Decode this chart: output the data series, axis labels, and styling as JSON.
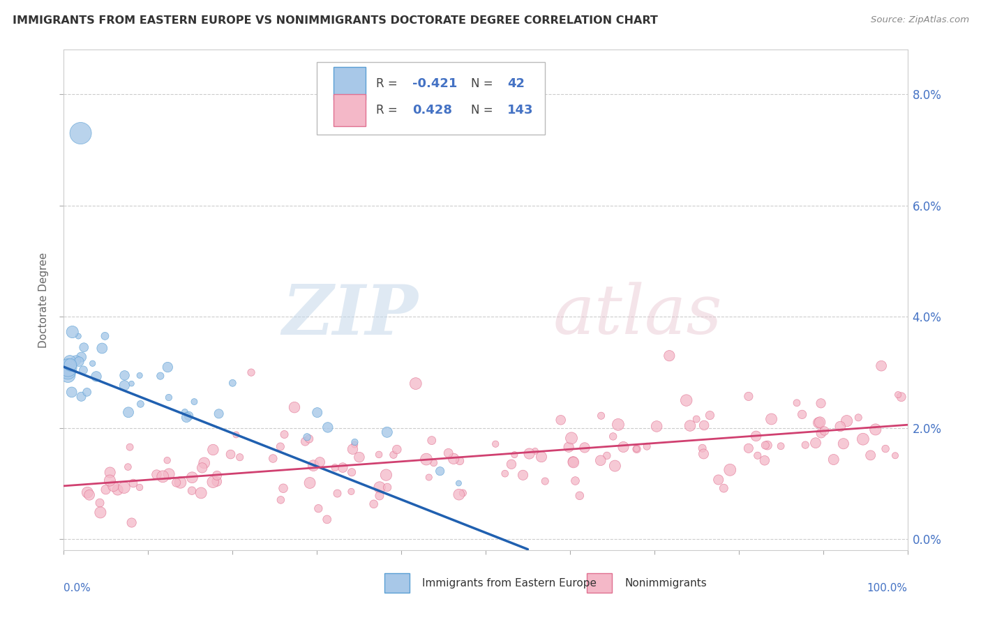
{
  "title": "IMMIGRANTS FROM EASTERN EUROPE VS NONIMMIGRANTS DOCTORATE DEGREE CORRELATION CHART",
  "source": "Source: ZipAtlas.com",
  "ylabel": "Doctorate Degree",
  "blue_R": -0.421,
  "blue_N": 42,
  "pink_R": 0.428,
  "pink_N": 143,
  "blue_scatter_color": "#a8c8e8",
  "blue_edge_color": "#5a9fd4",
  "pink_scatter_color": "#f4b8c8",
  "pink_edge_color": "#e07090",
  "blue_line_color": "#2060b0",
  "pink_line_color": "#d04070",
  "background_color": "#ffffff",
  "grid_color": "#cccccc",
  "watermark_zip": "ZIP",
  "watermark_atlas": "atlas",
  "tick_color": "#4472c4",
  "title_color": "#333333",
  "ylabel_color": "#666666",
  "xlim": [
    0,
    100
  ],
  "ylim": [
    -0.002,
    0.088
  ],
  "yticks": [
    0.0,
    0.02,
    0.04,
    0.06,
    0.08
  ],
  "ytick_labels": [
    "0.0%",
    "2.0%",
    "4.0%",
    "6.0%",
    "8.0%"
  ]
}
